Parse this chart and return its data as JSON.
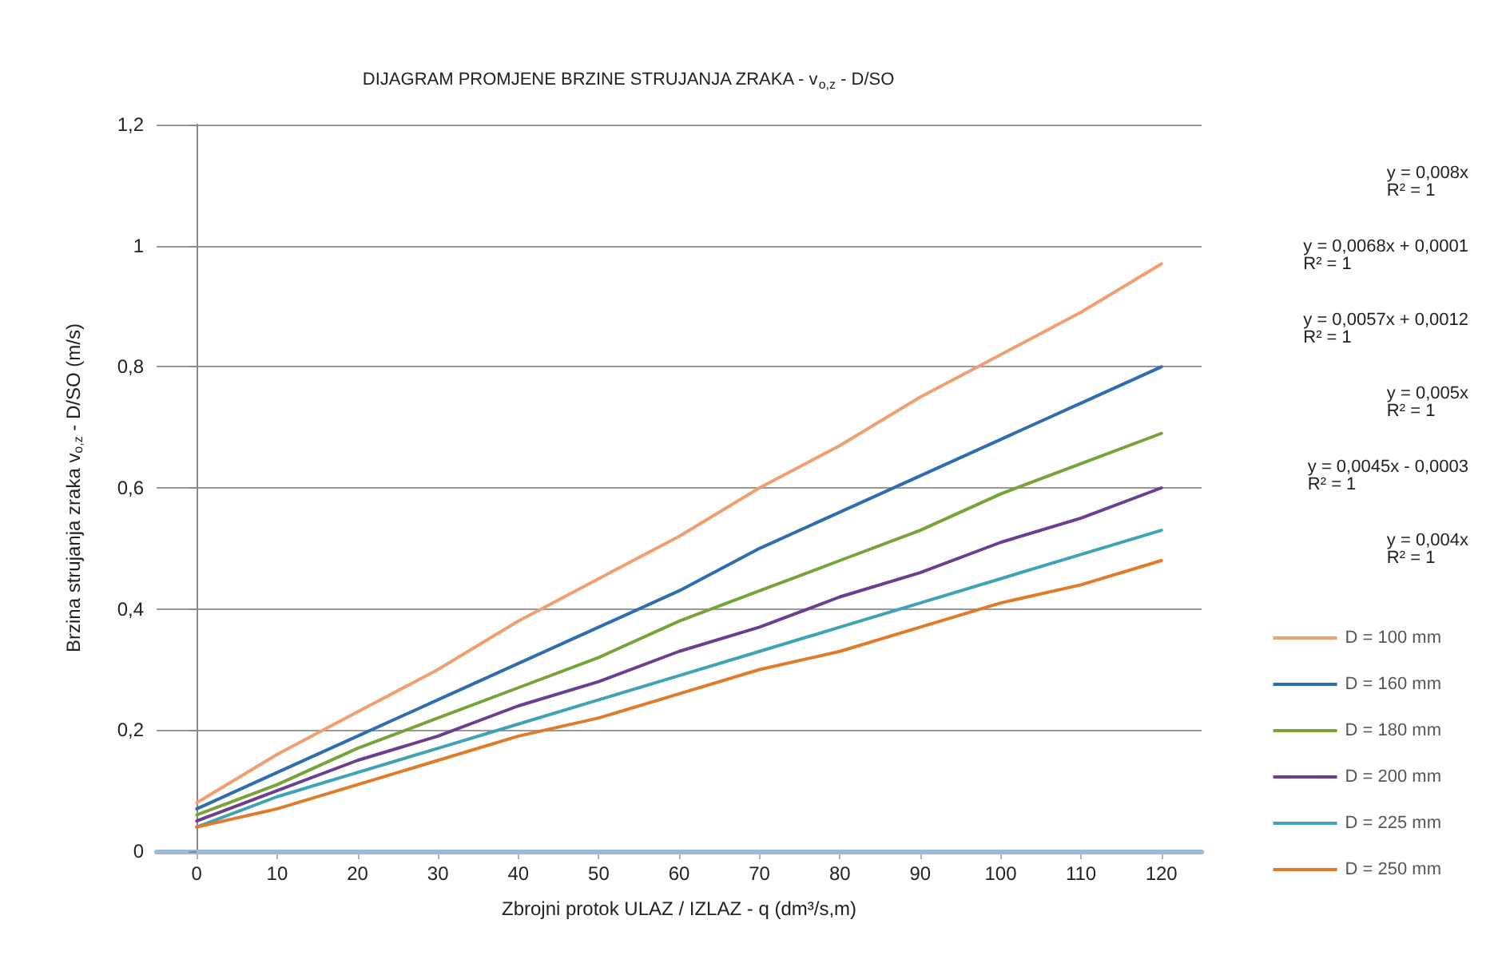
{
  "chart_data": {
    "type": "line",
    "title": "DIJAGRAM PROMJENE BRZINE STRUJANJA ZRAKA - v$_{o,z}$ - D/SO",
    "xlabel": "Zbrojni protok ULAZ / IZLAZ - q (dm³/s,m)",
    "ylabel": "Brzina strujanja zraka v$_{o,z}$ - D/SO (m/s)",
    "x": [
      0,
      10,
      20,
      30,
      40,
      50,
      60,
      70,
      80,
      90,
      100,
      110,
      120
    ],
    "series": [
      {
        "name": "D = 100 mm",
        "color": "#f0a070",
        "values": [
          0.08,
          0.16,
          0.23,
          0.3,
          0.38,
          0.45,
          0.52,
          0.6,
          0.67,
          0.75,
          0.82,
          0.89,
          0.97
        ]
      },
      {
        "name": "D = 160 mm",
        "color": "#2e6db0",
        "values": [
          0.07,
          0.13,
          0.19,
          0.25,
          0.31,
          0.37,
          0.43,
          0.5,
          0.56,
          0.62,
          0.68,
          0.74,
          0.8
        ]
      },
      {
        "name": "D = 180 mm",
        "color": "#77a33a",
        "values": [
          0.06,
          0.11,
          0.17,
          0.22,
          0.27,
          0.32,
          0.38,
          0.43,
          0.48,
          0.53,
          0.59,
          0.64,
          0.69
        ]
      },
      {
        "name": "D = 200 mm",
        "color": "#6a3f8f",
        "values": [
          0.05,
          0.1,
          0.15,
          0.19,
          0.24,
          0.28,
          0.33,
          0.37,
          0.42,
          0.46,
          0.51,
          0.55,
          0.6
        ]
      },
      {
        "name": "D = 225 mm",
        "color": "#3fa3b5",
        "values": [
          0.04,
          0.09,
          0.13,
          0.17,
          0.21,
          0.25,
          0.29,
          0.33,
          0.37,
          0.41,
          0.45,
          0.49,
          0.53
        ]
      },
      {
        "name": "D = 250 mm",
        "color": "#e07b2a",
        "values": [
          0.04,
          0.07,
          0.11,
          0.15,
          0.19,
          0.22,
          0.26,
          0.3,
          0.33,
          0.37,
          0.41,
          0.44,
          0.48
        ]
      }
    ],
    "xlim": [
      -5,
      125
    ],
    "xticks": [
      0,
      10,
      20,
      30,
      40,
      50,
      60,
      70,
      80,
      90,
      100,
      110,
      120
    ],
    "ylim": [
      0,
      1.2
    ],
    "yticks": [
      0,
      {
        "value": 0.2,
        "label": "0,2"
      },
      {
        "value": 0.4,
        "label": "0,4"
      },
      {
        "value": 0.6,
        "label": "0,6"
      },
      {
        "value": 0.8,
        "label": "0,8"
      },
      1,
      {
        "value": 1.2,
        "label": "1,2"
      }
    ],
    "annotations": [
      "y = 0,008x\nR² = 1",
      "y = 0,0068x + 0,0001\nR² = 1",
      "y = 0,0057x + 0,0012\nR² = 1",
      "y = 0,005x\nR² = 1",
      "y = 0,0045x - 0,0003\nR² = 1",
      "y = 0,004x\nR² = 1"
    ],
    "grid": "y",
    "legend": "right",
    "marker": "none",
    "line_style": "solid"
  }
}
